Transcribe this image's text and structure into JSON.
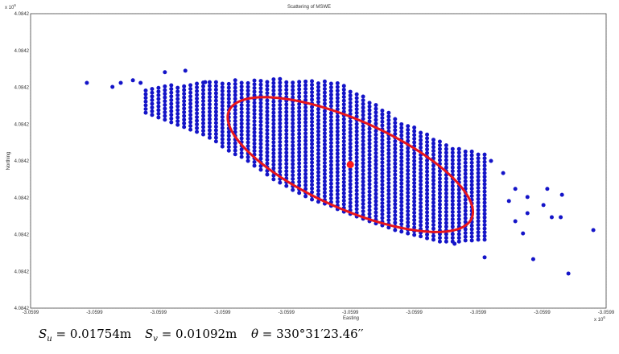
{
  "chart_data": {
    "type": "scatter",
    "title": "Scattering of MSWE",
    "x_label": "Easting",
    "y_label": "Northing",
    "x_exponent": {
      "base": "x 10",
      "power": "6"
    },
    "y_exponent": {
      "base": "x 10",
      "power": "6"
    },
    "xlim": [
      -3059900.09,
      -3059900.0
    ],
    "ylim": [
      4084200.0,
      4084200.08
    ],
    "xticks": [
      {
        "value": -3059900.09,
        "label": "-3.0599"
      },
      {
        "value": -3059900.08,
        "label": "-3.0599"
      },
      {
        "value": -3059900.07,
        "label": "-3.0599"
      },
      {
        "value": -3059900.06,
        "label": "-3.0599"
      },
      {
        "value": -3059900.05,
        "label": "-3.0599"
      },
      {
        "value": -3059900.04,
        "label": "-3.0599"
      },
      {
        "value": -3059900.03,
        "label": "-3.0599"
      },
      {
        "value": -3059900.02,
        "label": "-3.0599"
      },
      {
        "value": -3059900.01,
        "label": "-3.0599"
      },
      {
        "value": -3059900.0,
        "label": "-3.0599"
      }
    ],
    "yticks": [
      {
        "value": 4084200.0,
        "label": "4.0842"
      },
      {
        "value": 4084200.01,
        "label": "4.0842"
      },
      {
        "value": 4084200.02,
        "label": "4.0842"
      },
      {
        "value": 4084200.03,
        "label": "4.0842"
      },
      {
        "value": 4084200.04,
        "label": "4.0842"
      },
      {
        "value": 4084200.05,
        "label": "4.0842"
      },
      {
        "value": 4084200.06,
        "label": "4.0842"
      },
      {
        "value": 4084200.07,
        "label": "4.0842"
      },
      {
        "value": 4084200.08,
        "label": "4.0842"
      }
    ],
    "grid": true,
    "color": "#1414c8",
    "columns": {
      "x": [
        -3059900.072,
        -3059900.071,
        -3059900.07,
        -3059900.069,
        -3059900.068,
        -3059900.067,
        -3059900.066,
        -3059900.065,
        -3059900.064,
        -3059900.063,
        -3059900.062,
        -3059900.061,
        -3059900.06,
        -3059900.059,
        -3059900.058,
        -3059900.057,
        -3059900.056,
        -3059900.055,
        -3059900.054,
        -3059900.053,
        -3059900.052,
        -3059900.051,
        -3059900.05,
        -3059900.049,
        -3059900.048,
        -3059900.047,
        -3059900.046,
        -3059900.045,
        -3059900.044,
        -3059900.043,
        -3059900.042,
        -3059900.041,
        -3059900.04,
        -3059900.039,
        -3059900.038,
        -3059900.037,
        -3059900.036,
        -3059900.035,
        -3059900.034,
        -3059900.033,
        -3059900.032,
        -3059900.031,
        -3059900.03,
        -3059900.029,
        -3059900.028,
        -3059900.027,
        -3059900.026,
        -3059900.025,
        -3059900.024,
        -3059900.023,
        -3059900.022,
        -3059900.021,
        -3059900.02,
        -3059900.019
      ],
      "high": [
        4084200.0597,
        4084200.0599,
        4084200.0601,
        4084200.0603,
        4084200.0606,
        4084200.0608,
        4084200.061,
        4084200.0612,
        4084200.0614,
        4084200.0614,
        4084200.0616,
        4084200.0616,
        4084200.0619,
        4084200.0619,
        4084200.0621,
        4084200.0621,
        4084200.0621,
        4084200.0623,
        4084200.0623,
        4084200.0623,
        4084200.0623,
        4084200.0623,
        4084200.0621,
        4084200.0621,
        4084200.0621,
        4084200.0619,
        4084200.0619,
        4084200.0616,
        4084200.0616,
        4084200.0614,
        4084200.0612,
        4084200.0606,
        4084200.0597,
        4084200.0586,
        4084200.0575,
        4084200.0564,
        4084200.0553,
        4084200.0542,
        4084200.0531,
        4084200.052,
        4084200.0509,
        4084200.0501,
        4084200.0492,
        4084200.0483,
        4084200.0472,
        4084200.0463,
        4084200.0455,
        4084200.0448,
        4084200.0442,
        4084200.0435,
        4084200.0431,
        4084200.0426,
        4084200.0422,
        4084200.0418
      ],
      "low": [
        4084200.0531,
        4084200.0525,
        4084200.0518,
        4084200.0512,
        4084200.0505,
        4084200.0498,
        4084200.0492,
        4084200.0485,
        4084200.0479,
        4084200.0472,
        4084200.0463,
        4084200.0453,
        4084200.0439,
        4084200.0428,
        4084200.0418,
        4084200.0411,
        4084200.04,
        4084200.0387,
        4084200.0376,
        4084200.0363,
        4084200.035,
        4084200.0341,
        4084200.0332,
        4084200.0321,
        4084200.0313,
        4084200.0304,
        4084200.0295,
        4084200.0289,
        4084200.0284,
        4084200.0278,
        4084200.0269,
        4084200.0262,
        4084200.0256,
        4084200.0249,
        4084200.0243,
        4084200.0236,
        4084200.023,
        4084200.0225,
        4084200.0219,
        4084200.0212,
        4084200.0208,
        4084200.0203,
        4084200.0199,
        4084200.0195,
        4084200.019,
        4084200.0186,
        4084200.0181,
        4084200.0181,
        4084200.0181,
        4084200.0181,
        4084200.0184,
        4084200.0184,
        4084200.0186,
        4084200.0186
      ]
    },
    "outliers": {
      "x": [
        -3059900.0812,
        -3059900.0772,
        -3059900.0759,
        -3059900.074,
        -3059900.0728,
        -3059900.069,
        -3059900.0658,
        -3059900.0627,
        -3059900.018,
        -3059900.0161,
        -3059900.0142,
        -3059900.0123,
        -3059900.0092,
        -3059900.0069,
        -3059900.0071,
        -3059900.0123,
        -3059900.0142,
        -3059900.013,
        -3059900.0085,
        -3059900.002,
        -3059900.0059,
        -3059900.0114,
        -3059900.019,
        -3059900.0237,
        -3059900.0098,
        -3059900.0152
      ],
      "y": [
        4084200.0612,
        4084200.0601,
        4084200.0612,
        4084200.0619,
        4084200.0612,
        4084200.0641,
        4084200.0645,
        4084200.0614,
        4084200.04,
        4084200.0367,
        4084200.0324,
        4084200.0302,
        4084200.0324,
        4084200.0308,
        4084200.0247,
        4084200.0258,
        4084200.0236,
        4084200.0203,
        4084200.0247,
        4084200.0212,
        4084200.0094,
        4084200.0133,
        4084200.0138,
        4084200.0175,
        4084200.028,
        4084200.0291
      ]
    },
    "mean": {
      "x": -3059900.04,
      "y": 4084200.039,
      "color": "#ff1a1a"
    },
    "ellipse": {
      "major": [
        0.01897,
        -0.01464
      ],
      "minor": [
        -0.00282,
        -0.011
      ],
      "color": "#e8161c"
    },
    "caption": [
      {
        "var": "S",
        "sub": "u",
        "rest": " = 0.01754m"
      },
      {
        "var": "S",
        "sub": "v",
        "rest": " = 0.01092m"
      },
      {
        "var": "θ",
        "rest": " = 330°31′23.46′′"
      }
    ]
  }
}
